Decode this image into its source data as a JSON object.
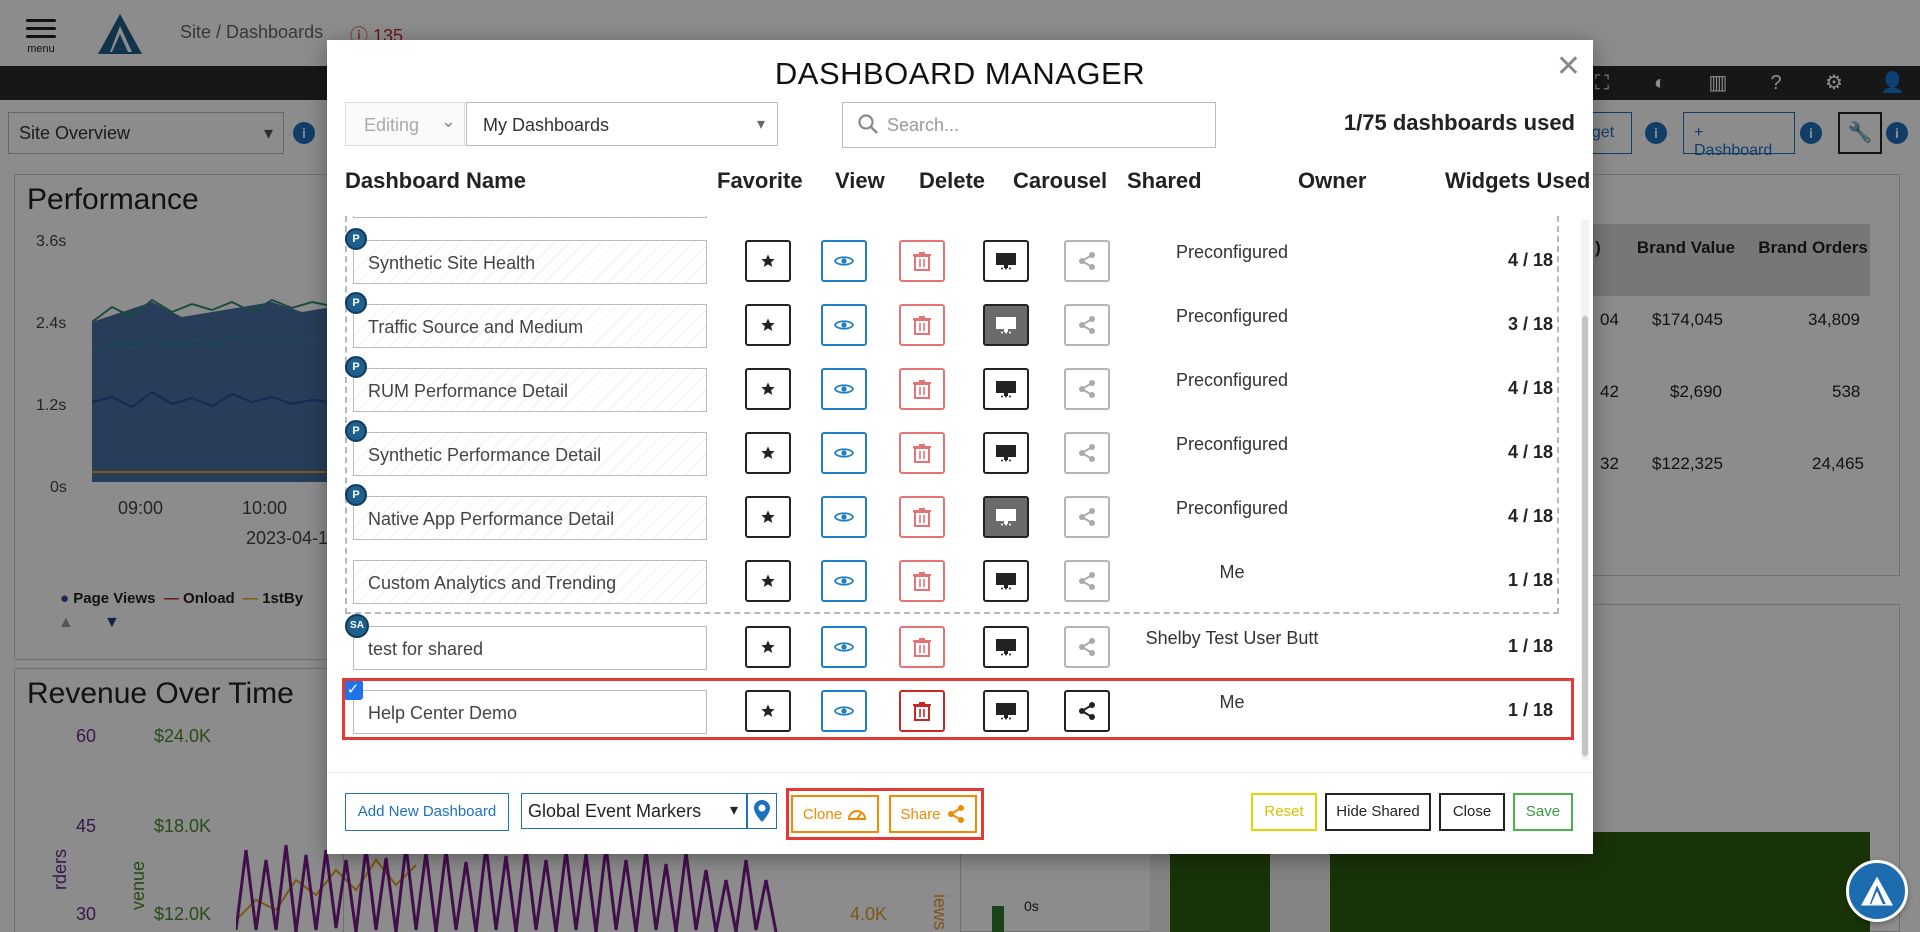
{
  "app": {
    "menu_label": "menu",
    "breadcrumb": "Site / Dashboards",
    "alert_count": "135",
    "site_select": "Site Overview",
    "widget_btn_label": "dget",
    "add_dashboard_btn": "+ Dashboard"
  },
  "background": {
    "performance_title": "Performance",
    "perf_yticks": [
      "3.6s",
      "2.4s",
      "1.2s",
      "0s"
    ],
    "perf_xticks": [
      "09:00",
      "10:00"
    ],
    "perf_date": "2023-04-1",
    "perf_legend": [
      "Page Views",
      "Onload",
      "1stBy"
    ],
    "revenue_title": "Revenue Over Time",
    "rev_left_ticks": [
      "60",
      "45",
      "30"
    ],
    "rev_revenue_ticks": [
      "$24.0K",
      "$18.0K",
      "$12.0K"
    ],
    "rev_right_tick": "4.0K",
    "rev_left_axis": "rders",
    "rev_rev_axis": "venue",
    "rev_right_axis": "iews an",
    "table_headers": [
      ")",
      "Brand Value",
      "Brand Orders"
    ],
    "table_rows": [
      [
        "04",
        "$174,045",
        "34,809"
      ],
      [
        "42",
        "$2,690",
        "538"
      ],
      [
        "32",
        "$122,325",
        "24,465"
      ]
    ],
    "map_zero": "0s"
  },
  "modal": {
    "title": "DASHBOARD MANAGER",
    "mode": "Editing",
    "dashboard_filter": "My Dashboards",
    "search_placeholder": "Search...",
    "used": "1/75 dashboards used",
    "columns": [
      "Dashboard Name",
      "Favorite",
      "View",
      "Delete",
      "Carousel",
      "Shared",
      "Owner",
      "Widgets Used"
    ],
    "rows": [
      {
        "name": "Synthetic Site Health",
        "badge": "P",
        "owner": "Preconfigured",
        "widgets": "4 / 18",
        "carousel_on": false,
        "shared_on": false
      },
      {
        "name": "Traffic Source and Medium",
        "badge": "P",
        "owner": "Preconfigured",
        "widgets": "3 / 18",
        "carousel_on": true,
        "shared_on": false
      },
      {
        "name": "RUM Performance Detail",
        "badge": "P",
        "owner": "Preconfigured",
        "widgets": "4 / 18",
        "carousel_on": false,
        "shared_on": false
      },
      {
        "name": "Synthetic Performance Detail",
        "badge": "P",
        "owner": "Preconfigured",
        "widgets": "4 / 18",
        "carousel_on": false,
        "shared_on": false
      },
      {
        "name": "Native App Performance Detail",
        "badge": "P",
        "owner": "Preconfigured",
        "widgets": "4 / 18",
        "carousel_on": true,
        "shared_on": false
      },
      {
        "name": "Custom Analytics and Trending",
        "badge": "",
        "owner": "Me",
        "widgets": "1 / 18",
        "carousel_on": false,
        "shared_on": false
      },
      {
        "name": "test for shared",
        "badge": "SA",
        "owner": "Shelby Test User Butt",
        "widgets": "1 / 18",
        "carousel_on": false,
        "shared_on": false
      },
      {
        "name": "Help Center Demo",
        "badge": "",
        "owner": "Me",
        "widgets": "1 / 18",
        "carousel_on": false,
        "shared_on": true,
        "selected": true
      }
    ],
    "footer": {
      "add_new": "Add New Dashboard",
      "event_markers": "Global Event Markers",
      "clone": "Clone",
      "share": "Share",
      "reset": "Reset",
      "hide_shared": "Hide Shared",
      "close": "Close",
      "save": "Save"
    }
  },
  "colors": {
    "accent_blue": "#1f6fbf",
    "danger_red": "#e53935",
    "orange": "#f08a00",
    "save_green": "#4caf50",
    "reset_yellow": "#e6d200"
  }
}
